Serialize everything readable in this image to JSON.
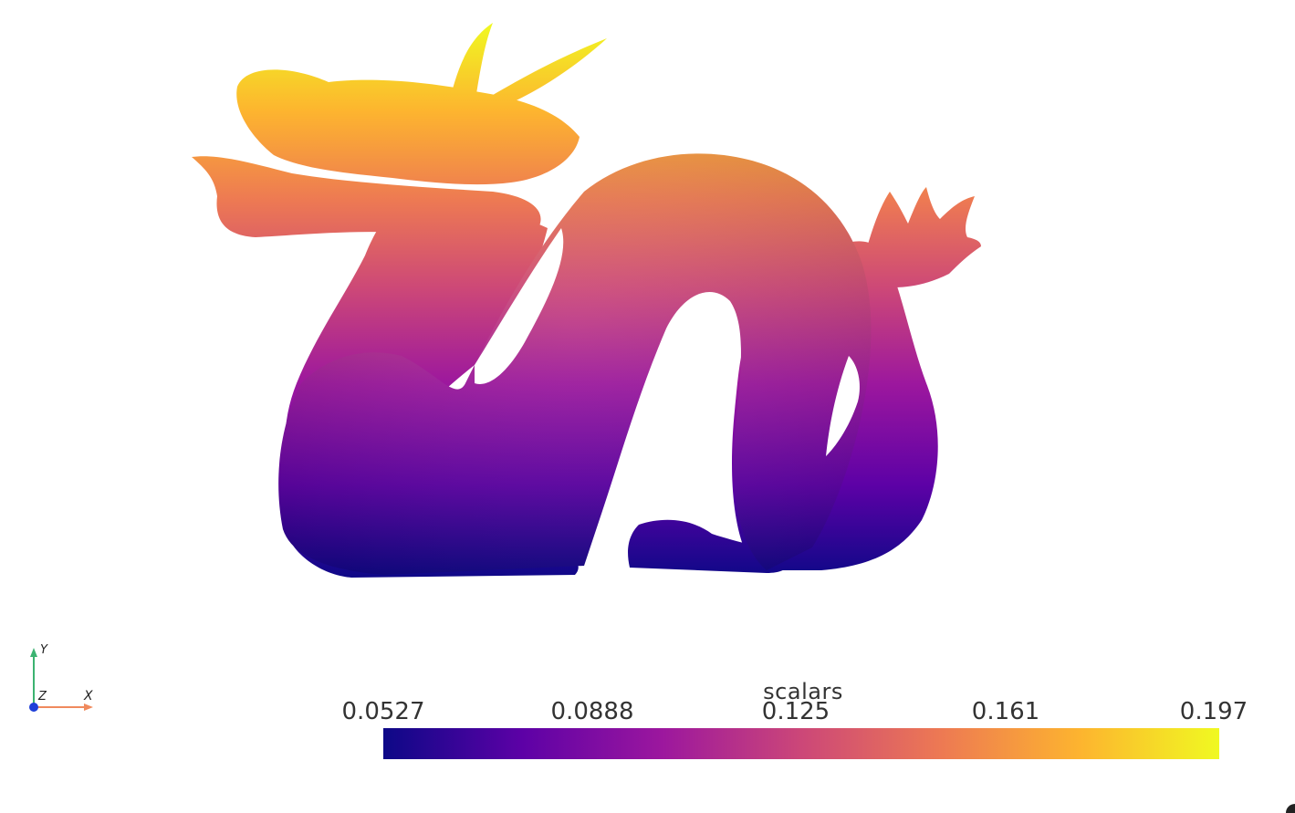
{
  "scene": {
    "object": "dragon-mesh",
    "colormap": "plasma",
    "background": "#ffffff"
  },
  "colorbar": {
    "title": "scalars",
    "ticks": [
      "0.0527",
      "0.0888",
      "0.125",
      "0.161",
      "0.197"
    ],
    "range": [
      0.0527,
      0.197
    ],
    "colors": [
      "#0d0887",
      "#5d01a6",
      "#9c179e",
      "#cc4778",
      "#ed7953",
      "#fdb42f",
      "#f0f921"
    ]
  },
  "axes": {
    "x_label": "X",
    "y_label": "Y",
    "z_label": "Z",
    "x_color": "#f08a5d",
    "y_color": "#3cb371",
    "z_color": "#1e3fd8"
  }
}
